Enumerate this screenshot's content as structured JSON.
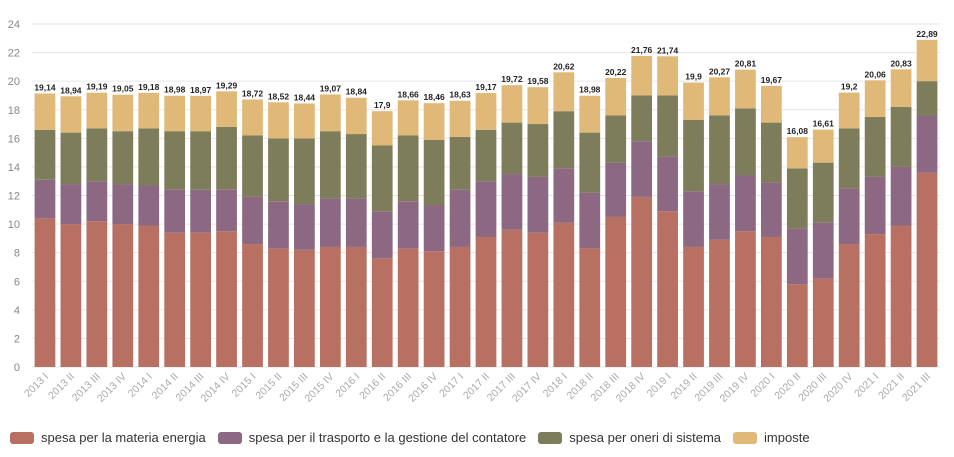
{
  "chart_data": {
    "type": "bar",
    "stacked": true,
    "title": "",
    "xlabel": "",
    "ylabel": "",
    "ylim": [
      0,
      24
    ],
    "yticks": [
      "0",
      "2",
      "4",
      "6",
      "8",
      "10",
      "12",
      "14",
      "16",
      "18",
      "20",
      "22",
      "24"
    ],
    "grid": true,
    "legend_position": "bottom-left",
    "categories": [
      "2013 I",
      "2013 II",
      "2013 III",
      "2013 IV",
      "2014 I",
      "2014 II",
      "2014 III",
      "2014 IV",
      "2015 I",
      "2015 II",
      "2015 III",
      "2015 IV",
      "2016 I",
      "2016 II",
      "2016 III",
      "2016 IV",
      "2017 I",
      "2017 II",
      "2017 III",
      "2017 IV",
      "2018 I",
      "2018 II",
      "2018 III",
      "2018 IV",
      "2019 I",
      "2019 II",
      "2019 III",
      "2019 IV",
      "2020 I",
      "2020 II",
      "2020 III",
      "2020 IV",
      "2021 I",
      "2021 II",
      "2021 III"
    ],
    "totals": [
      "19,14",
      "18,94",
      "19,19",
      "19,05",
      "19,18",
      "18,98",
      "18,97",
      "19,29",
      "18,72",
      "18,52",
      "18,44",
      "19,07",
      "18,84",
      "17,9",
      "18,66",
      "18,46",
      "18,63",
      "19,17",
      "19,72",
      "19,58",
      "20,62",
      "18,98",
      "20,22",
      "21,76",
      "21,74",
      "19,9",
      "20,27",
      "20,81",
      "19,67",
      "16,08",
      "16,61",
      "19,2",
      "20,06",
      "20,83",
      "22,89"
    ],
    "series": [
      {
        "name": "spesa per la materia energia",
        "color": "#b87063",
        "values": [
          10.4,
          10.0,
          10.2,
          10.0,
          9.9,
          9.4,
          9.4,
          9.5,
          8.6,
          8.3,
          8.2,
          8.4,
          8.4,
          7.6,
          8.3,
          8.1,
          8.4,
          9.1,
          9.6,
          9.4,
          10.1,
          8.3,
          10.5,
          11.9,
          10.9,
          8.4,
          8.9,
          9.5,
          9.1,
          5.8,
          6.2,
          8.6,
          9.3,
          9.9,
          13.6
        ]
      },
      {
        "name": "spesa per il trasporto e la gestione del contatore",
        "color": "#8c6882",
        "values": [
          2.7,
          2.8,
          2.8,
          2.8,
          2.8,
          3.0,
          3.0,
          2.9,
          3.3,
          3.3,
          3.2,
          3.4,
          3.4,
          3.3,
          3.3,
          3.2,
          4.0,
          3.9,
          3.9,
          3.9,
          3.8,
          3.9,
          3.8,
          3.9,
          3.8,
          3.9,
          3.9,
          3.9,
          3.8,
          3.9,
          3.9,
          3.9,
          4.0,
          4.1,
          4.0
        ]
      },
      {
        "name": "spesa per oneri di sistema",
        "color": "#7e7d5b",
        "values": [
          3.5,
          3.6,
          3.7,
          3.7,
          4.0,
          4.1,
          4.1,
          4.4,
          4.3,
          4.4,
          4.6,
          4.7,
          4.5,
          4.6,
          4.6,
          4.6,
          3.7,
          3.6,
          3.6,
          3.7,
          4.0,
          4.2,
          3.3,
          3.2,
          4.3,
          5.0,
          4.8,
          4.7,
          4.2,
          4.2,
          4.2,
          4.2,
          4.2,
          4.2,
          2.4
        ]
      },
      {
        "name": "imposte",
        "color": "#e0b877",
        "values": [
          2.54,
          2.54,
          2.49,
          2.55,
          2.48,
          2.48,
          2.47,
          2.49,
          2.52,
          2.52,
          2.44,
          2.57,
          2.54,
          2.4,
          2.46,
          2.56,
          2.53,
          2.57,
          2.62,
          2.58,
          2.72,
          2.58,
          2.62,
          2.76,
          2.74,
          2.6,
          2.67,
          2.71,
          2.57,
          2.18,
          2.31,
          2.5,
          2.56,
          2.63,
          2.89
        ]
      }
    ]
  }
}
